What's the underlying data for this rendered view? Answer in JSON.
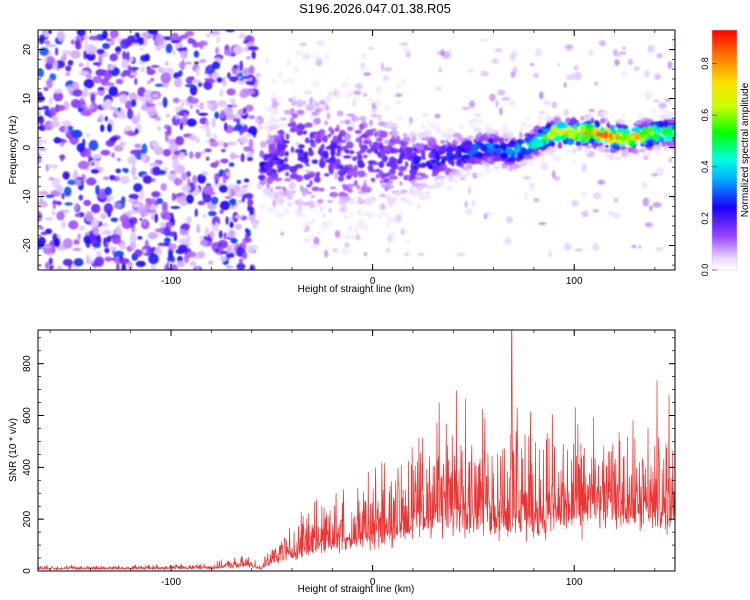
{
  "title": "S196.2026.047.01.38.R05",
  "chart_data": [
    {
      "type": "heatmap",
      "xlabel": "Height of straight line (km)",
      "ylabel": "Frequency (Hz)",
      "xlim": [
        -166,
        150
      ],
      "ylim": [
        -25,
        24
      ],
      "xticks": [
        -100,
        0,
        100
      ],
      "xtick_labels": [
        "-100",
        "0",
        "100"
      ],
      "yticks": [
        20,
        10,
        0,
        -10,
        -20
      ],
      "ytick_labels": [
        "20",
        "10",
        "0",
        "-10",
        "-20"
      ],
      "colorbar": {
        "label": "Normalized spectral amplitude",
        "range": [
          0.0,
          0.93
        ],
        "ticks": [
          0.0,
          0.2,
          0.4,
          0.6,
          0.8
        ],
        "tick_labels": [
          "0.0",
          "0.2",
          "0.4",
          "0.6",
          "0.8"
        ]
      },
      "noise_region": {
        "x": [
          -166,
          -58
        ],
        "freq": [
          -25,
          24
        ],
        "amplitude": [
          0.05,
          0.3
        ]
      },
      "signal_track": [
        {
          "x": -55,
          "freq": -4,
          "width": 8,
          "amplitude": 0.25
        },
        {
          "x": -40,
          "freq": -1,
          "width": 18,
          "amplitude": 0.25
        },
        {
          "x": -20,
          "freq": -2,
          "width": 20,
          "amplitude": 0.22
        },
        {
          "x": 0,
          "freq": -2,
          "width": 16,
          "amplitude": 0.22
        },
        {
          "x": 20,
          "freq": -3,
          "width": 10,
          "amplitude": 0.25
        },
        {
          "x": 40,
          "freq": -2,
          "width": 6,
          "amplitude": 0.3
        },
        {
          "x": 55,
          "freq": 0,
          "width": 5,
          "amplitude": 0.35
        },
        {
          "x": 70,
          "freq": -1,
          "width": 5,
          "amplitude": 0.4
        },
        {
          "x": 80,
          "freq": 1,
          "width": 4,
          "amplitude": 0.55
        },
        {
          "x": 90,
          "freq": 3,
          "width": 4,
          "amplitude": 0.8
        },
        {
          "x": 100,
          "freq": 3,
          "width": 4,
          "amplitude": 0.85
        },
        {
          "x": 110,
          "freq": 3,
          "width": 4,
          "amplitude": 0.9
        },
        {
          "x": 120,
          "freq": 2,
          "width": 4,
          "amplitude": 0.9
        },
        {
          "x": 130,
          "freq": 2,
          "width": 4,
          "amplitude": 0.85
        },
        {
          "x": 140,
          "freq": 3,
          "width": 4,
          "amplitude": 0.7
        },
        {
          "x": 150,
          "freq": 3,
          "width": 4,
          "amplitude": 0.6
        }
      ]
    },
    {
      "type": "line",
      "xlabel": "Height of straight line (km)",
      "ylabel": "SNR (10 * v/v)",
      "xlim": [
        -166,
        150
      ],
      "ylim": [
        0,
        930
      ],
      "xticks": [
        -100,
        0,
        100
      ],
      "xtick_labels": [
        "-100",
        "0",
        "100"
      ],
      "yticks": [
        0,
        200,
        400,
        600,
        800
      ],
      "ytick_labels": [
        "0",
        "200",
        "400",
        "600",
        "800"
      ],
      "series": [
        {
          "name": "SNR",
          "color": "#ee3333",
          "envelope": {
            "x": [
              -166,
              -120,
              -80,
              -62,
              -55,
              -50,
              -40,
              -30,
              -20,
              -10,
              0,
              10,
              20,
              30,
              40,
              50,
              60,
              70,
              80,
              90,
              100,
              110,
              120,
              130,
              140,
              150
            ],
            "base": [
              10,
              10,
              12,
              25,
              10,
              30,
              60,
              80,
              100,
              110,
              120,
              140,
              160,
              190,
              200,
              210,
              190,
              170,
              180,
              190,
              200,
              210,
              230,
              220,
              200,
              190
            ],
            "peak": [
              25,
              25,
              35,
              70,
              30,
              120,
              200,
              300,
              340,
              380,
              420,
              470,
              520,
              600,
              680,
              650,
              650,
              700,
              620,
              600,
              580,
              600,
              560,
              560,
              600,
              560
            ]
          },
          "spikes": [
            {
              "x": 69,
              "y": 930
            },
            {
              "x": 141,
              "y": 735
            },
            {
              "x": 147,
              "y": 680
            },
            {
              "x": 33,
              "y": 650
            },
            {
              "x": 46,
              "y": 665
            }
          ]
        }
      ]
    }
  ]
}
